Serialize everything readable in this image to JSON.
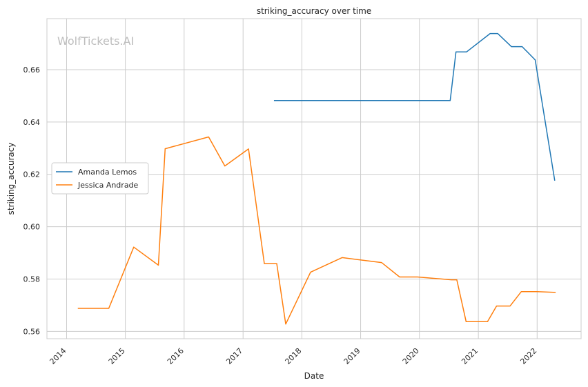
{
  "chart_data": {
    "type": "line",
    "title": "striking_accuracy over time",
    "xlabel": "Date",
    "ylabel": "striking_accuracy",
    "watermark": "WolfTickets.AI",
    "xlim": [
      "2013-09-01",
      "2022-10-01"
    ],
    "ylim": [
      0.5572,
      0.6795
    ],
    "x_ticks": [
      "2014-01-01",
      "2015-01-01",
      "2016-01-01",
      "2017-01-01",
      "2018-01-01",
      "2019-01-01",
      "2020-01-01",
      "2021-01-01",
      "2022-01-01"
    ],
    "x_tick_labels": [
      "2014",
      "2015",
      "2016",
      "2017",
      "2018",
      "2019",
      "2020",
      "2021",
      "2022"
    ],
    "y_ticks": [
      0.56,
      0.58,
      0.6,
      0.62,
      0.64,
      0.66
    ],
    "y_tick_labels": [
      "0.56",
      "0.58",
      "0.60",
      "0.62",
      "0.64",
      "0.66"
    ],
    "grid": true,
    "legend_position": "center-left",
    "series": [
      {
        "name": "Amanda Lemos",
        "color": "#1f77b4",
        "points": [
          [
            "2017-07-15",
            0.6482
          ],
          [
            "2020-07-10",
            0.6482
          ],
          [
            "2020-08-15",
            0.6668
          ],
          [
            "2020-10-20",
            0.6668
          ],
          [
            "2021-03-15",
            0.6738
          ],
          [
            "2021-05-01",
            0.6738
          ],
          [
            "2021-07-25",
            0.6688
          ],
          [
            "2021-09-30",
            0.6688
          ],
          [
            "2021-12-20",
            0.6637
          ],
          [
            "2022-04-20",
            0.6178
          ]
        ]
      },
      {
        "name": "Jessica Andrade",
        "color": "#ff7f0e",
        "points": [
          [
            "2014-03-15",
            0.5688
          ],
          [
            "2014-09-20",
            0.5688
          ],
          [
            "2015-02-22",
            0.5922
          ],
          [
            "2015-07-25",
            0.5853
          ],
          [
            "2015-09-05",
            0.6298
          ],
          [
            "2016-06-01",
            0.6343
          ],
          [
            "2016-09-10",
            0.6232
          ],
          [
            "2017-02-04",
            0.6297
          ],
          [
            "2017-05-13",
            0.5859
          ],
          [
            "2017-07-29",
            0.5859
          ],
          [
            "2017-09-23",
            0.5628
          ],
          [
            "2018-02-24",
            0.5826
          ],
          [
            "2018-09-08",
            0.5882
          ],
          [
            "2019-05-11",
            0.5863
          ],
          [
            "2019-08-31",
            0.5808
          ],
          [
            "2019-12-20",
            0.5808
          ],
          [
            "2020-07-18",
            0.5797
          ],
          [
            "2020-08-20",
            0.5797
          ],
          [
            "2020-10-17",
            0.5637
          ],
          [
            "2021-02-27",
            0.5637
          ],
          [
            "2021-04-24",
            0.5697
          ],
          [
            "2021-07-17",
            0.5697
          ],
          [
            "2021-09-25",
            0.5752
          ],
          [
            "2021-12-31",
            0.5752
          ],
          [
            "2022-04-23",
            0.5749
          ]
        ]
      }
    ]
  }
}
